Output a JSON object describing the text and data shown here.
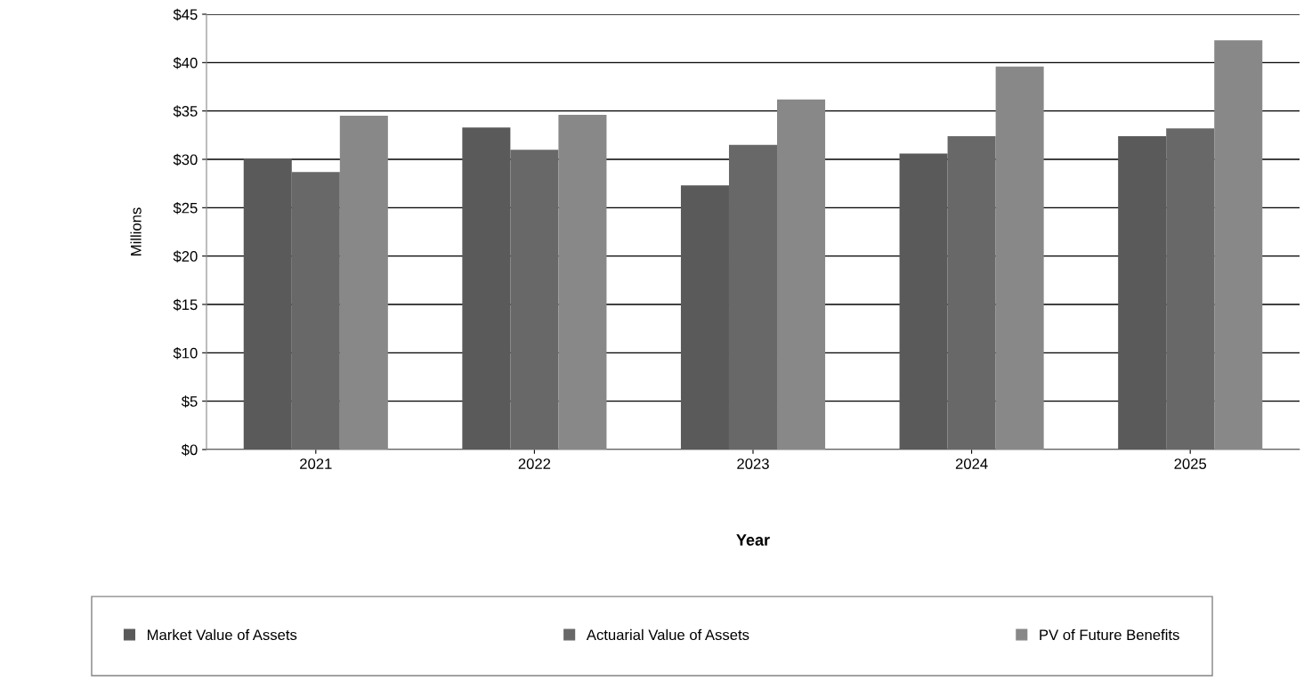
{
  "chart_data": {
    "type": "bar",
    "xlabel": "Year",
    "ylabel": "Millions",
    "categories": [
      "2021",
      "2022",
      "2023",
      "2024",
      "2025"
    ],
    "series": [
      {
        "name": "Market Value of Assets",
        "color": "#5a5a5a",
        "values": [
          30.1,
          33.3,
          27.3,
          30.6,
          32.4
        ]
      },
      {
        "name": "Actuarial Value of Assets",
        "color": "#686868",
        "values": [
          28.7,
          31.0,
          31.5,
          32.4,
          33.2
        ]
      },
      {
        "name": "PV of Future Benefits",
        "color": "#888888",
        "values": [
          34.5,
          34.6,
          36.2,
          39.6,
          42.3
        ]
      }
    ],
    "ylim": [
      0,
      45
    ],
    "yticks": [
      {
        "value": 0,
        "label": "$0"
      },
      {
        "value": 5,
        "label": "$5"
      },
      {
        "value": 10,
        "label": "$10"
      },
      {
        "value": 15,
        "label": "$15"
      },
      {
        "value": 20,
        "label": "$20"
      },
      {
        "value": 25,
        "label": "$25"
      },
      {
        "value": 30,
        "label": "$30"
      },
      {
        "value": 35,
        "label": "$35"
      },
      {
        "value": 40,
        "label": "$40"
      },
      {
        "value": 45,
        "label": "$45"
      }
    ],
    "grid": "y",
    "legend": "bottom"
  }
}
